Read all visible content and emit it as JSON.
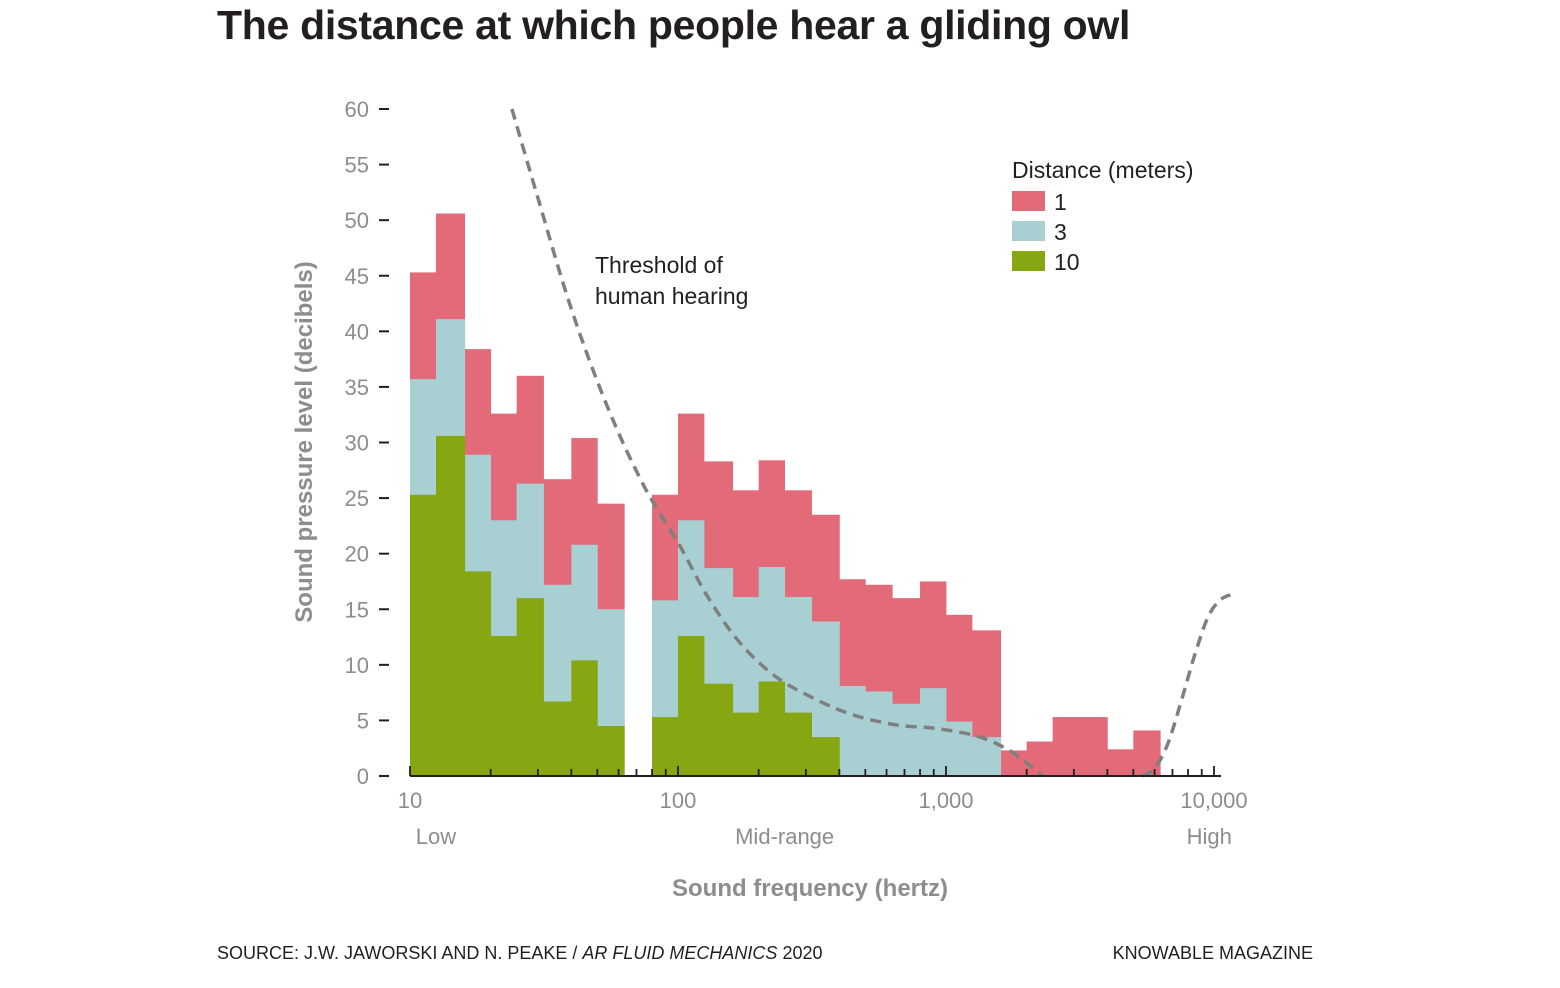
{
  "chart_data": {
    "type": "bar",
    "title": "The distance at which people hear a gliding owl",
    "xlabel": "Sound frequency (hertz)",
    "ylabel": "Sound pressure level (decibels)",
    "x_scale": "log",
    "xlim": [
      10,
      11500
    ],
    "ylim": [
      0,
      60
    ],
    "y_ticks": [
      0,
      5,
      10,
      15,
      20,
      25,
      30,
      35,
      40,
      45,
      50,
      55,
      60
    ],
    "y_tick_labels": [
      "0",
      "5",
      "10",
      "15",
      "20",
      "25",
      "30",
      "35",
      "40",
      "45",
      "50",
      "55",
      "60"
    ],
    "x_ticks": [
      10,
      100,
      1000,
      10000
    ],
    "x_tick_labels": [
      "10",
      "100",
      "1,000",
      "10,000"
    ],
    "x_range_labels": [
      {
        "text": "Low",
        "x": 12.5
      },
      {
        "text": "Mid-range",
        "x": 250
      },
      {
        "text": "High",
        "x": 9600
      }
    ],
    "band_edges": [
      10,
      12.5,
      16,
      20,
      25,
      31.5,
      40,
      50,
      63,
      80,
      100,
      125,
      160,
      200,
      250,
      315,
      400,
      500,
      630,
      800,
      1000,
      1250,
      1600,
      2000,
      2500,
      3150,
      4000,
      5000,
      6300,
      8000
    ],
    "series": [
      {
        "name": "1",
        "color": "#e36a78",
        "values": [
          45.3,
          50.6,
          38.4,
          32.6,
          36.0,
          26.7,
          30.4,
          24.5,
          null,
          25.3,
          32.6,
          28.3,
          25.7,
          28.4,
          25.7,
          23.5,
          17.7,
          17.2,
          16.0,
          17.5,
          14.5,
          13.1,
          2.3,
          3.1,
          5.3,
          5.3,
          2.4,
          4.1,
          null
        ]
      },
      {
        "name": "3",
        "color": "#a8d0d3",
        "values": [
          35.7,
          41.1,
          28.9,
          23.0,
          26.3,
          17.2,
          20.8,
          15.0,
          null,
          15.8,
          23.0,
          18.7,
          16.1,
          18.8,
          16.1,
          13.9,
          8.1,
          7.6,
          6.5,
          7.9,
          4.9,
          3.5,
          null,
          null,
          null,
          null,
          null,
          null,
          null
        ]
      },
      {
        "name": "10",
        "color": "#86a612",
        "values": [
          25.3,
          30.6,
          18.4,
          12.6,
          16.0,
          6.7,
          10.4,
          4.5,
          null,
          5.3,
          12.6,
          8.3,
          5.7,
          8.5,
          5.7,
          3.5,
          null,
          null,
          null,
          null,
          null,
          null,
          null,
          null,
          null,
          null,
          null,
          null,
          null
        ]
      }
    ],
    "threshold_curve": {
      "x": [
        24,
        30,
        40,
        55,
        75,
        100,
        130,
        170,
        230,
        320,
        450,
        650,
        900,
        1300,
        1750,
        2300
      ],
      "y": [
        60,
        52,
        42,
        33,
        26,
        21,
        16,
        12,
        9,
        7,
        5.5,
        4.6,
        4.3,
        3.6,
        2.2,
        0
      ]
    },
    "threshold_curve_high": {
      "x": [
        5400,
        6000,
        6700,
        7500,
        8500,
        9500,
        10500,
        11500
      ],
      "y": [
        0,
        0.7,
        2.8,
        6.5,
        11,
        14.3,
        15.8,
        16.3
      ]
    },
    "annotation": [
      "Threshold of",
      "human hearing"
    ],
    "legend_title": "Distance (meters)",
    "legend_position": "top-right",
    "grid": false
  },
  "footer": {
    "source_prefix": "SOURCE: J.W. JAWORSKI AND N. PEAKE / ",
    "source_journal": "AR FLUID MECHANICS",
    "source_year": " 2020",
    "brand": "KNOWABLE MAGAZINE"
  },
  "colors": {
    "axis": "#231f20",
    "tick_text": "#8d8d8d",
    "threshold": "#7f7f7f"
  }
}
